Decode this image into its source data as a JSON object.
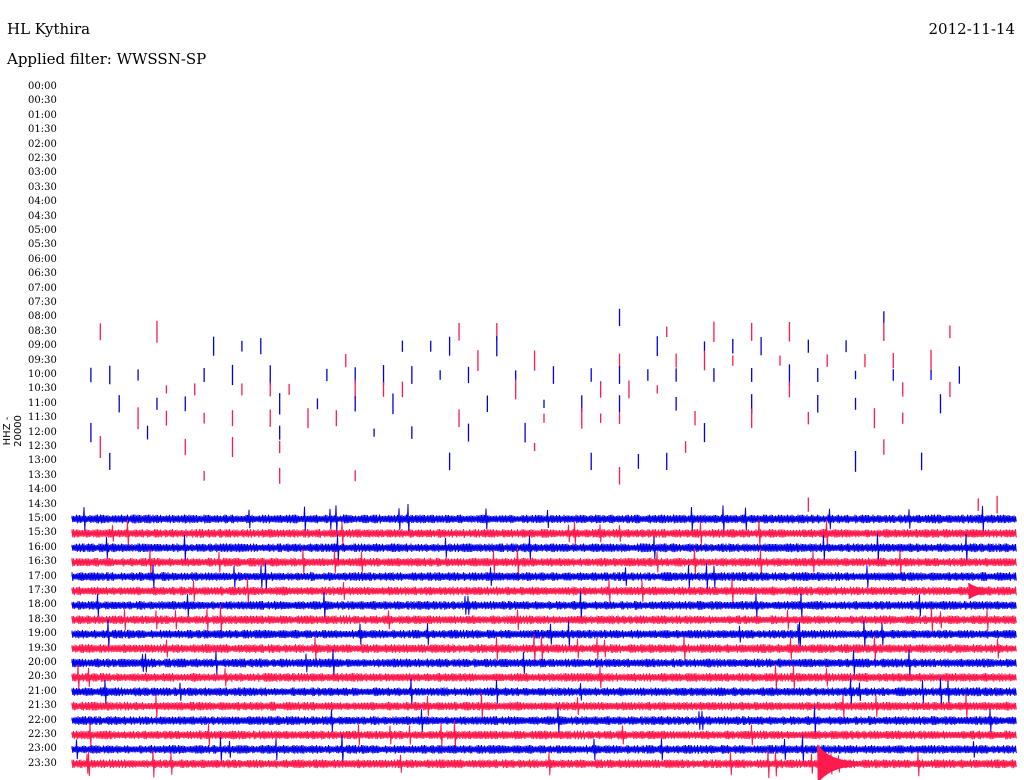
{
  "header": {
    "station": "HL Kythira",
    "date": "2012-11-14",
    "filter": "Applied filter: WWSSN-SP"
  },
  "chart_data": {
    "type": "line",
    "title": "HL Kythira",
    "ylabel": "HHZ - 20000",
    "row_labels": [
      "00:00",
      "00:30",
      "01:00",
      "01:30",
      "02:00",
      "02:30",
      "03:00",
      "03:30",
      "04:00",
      "04:30",
      "05:00",
      "05:30",
      "06:00",
      "06:30",
      "07:00",
      "07:30",
      "08:00",
      "08:30",
      "09:00",
      "09:30",
      "10:00",
      "10:30",
      "11:00",
      "11:30",
      "12:00",
      "12:30",
      "13:00",
      "13:30",
      "14:00",
      "14:30",
      "15:00",
      "15:30",
      "16:00",
      "16:30",
      "17:00",
      "17:30",
      "18:00",
      "18:30",
      "19:00",
      "19:30",
      "20:00",
      "20:30",
      "21:00",
      "21:30",
      "22:00",
      "22:30",
      "23:00",
      "23:30"
    ],
    "colors": {
      "even": "#0000e6",
      "odd": "#ff1a4d"
    },
    "continuous_from_row": 30,
    "event_markers": [
      {
        "time": "08:00",
        "x_frac": [
          0.58,
          0.86
        ]
      },
      {
        "time": "08:30",
        "x_frac": [
          0.03,
          0.09,
          0.41,
          0.45,
          0.63,
          0.68,
          0.72,
          0.76,
          0.86,
          0.93
        ]
      },
      {
        "time": "09:00",
        "x_frac": [
          0.15,
          0.18,
          0.2,
          0.35,
          0.38,
          0.4,
          0.45,
          0.62,
          0.67,
          0.7,
          0.73,
          0.78,
          0.82
        ]
      },
      {
        "time": "09:30",
        "x_frac": [
          0.29,
          0.43,
          0.49,
          0.58,
          0.64,
          0.67,
          0.7,
          0.75,
          0.8,
          0.84,
          0.87,
          0.91
        ]
      },
      {
        "time": "10:00",
        "x_frac": [
          0.02,
          0.04,
          0.07,
          0.14,
          0.17,
          0.21,
          0.27,
          0.3,
          0.33,
          0.36,
          0.39,
          0.42,
          0.47,
          0.51,
          0.55,
          0.58,
          0.61,
          0.64,
          0.68,
          0.72,
          0.76,
          0.79,
          0.83,
          0.87,
          0.91,
          0.94
        ]
      },
      {
        "time": "10:30",
        "x_frac": [
          0.1,
          0.13,
          0.18,
          0.21,
          0.23,
          0.3,
          0.33,
          0.35,
          0.47,
          0.56,
          0.59,
          0.62,
          0.76,
          0.88,
          0.93
        ]
      },
      {
        "time": "11:00",
        "x_frac": [
          0.05,
          0.09,
          0.12,
          0.22,
          0.26,
          0.3,
          0.34,
          0.44,
          0.5,
          0.54,
          0.58,
          0.64,
          0.72,
          0.79,
          0.83,
          0.92
        ]
      },
      {
        "time": "11:30",
        "x_frac": [
          0.07,
          0.1,
          0.14,
          0.17,
          0.21,
          0.25,
          0.28,
          0.41,
          0.5,
          0.54,
          0.56,
          0.58,
          0.66,
          0.72,
          0.78,
          0.85,
          0.88
        ]
      },
      {
        "time": "12:00",
        "x_frac": [
          0.02,
          0.08,
          0.22,
          0.32,
          0.36,
          0.42,
          0.48,
          0.67
        ]
      },
      {
        "time": "12:30",
        "x_frac": [
          0.03,
          0.12,
          0.17,
          0.22,
          0.49,
          0.65,
          0.86
        ]
      },
      {
        "time": "13:00",
        "x_frac": [
          0.04,
          0.4,
          0.55,
          0.6,
          0.63,
          0.83,
          0.9
        ]
      },
      {
        "time": "13:30",
        "x_frac": [
          0.14,
          0.22,
          0.3,
          0.58
        ]
      },
      {
        "time": "14:30",
        "x_frac": [
          0.78,
          0.96,
          0.98
        ]
      }
    ],
    "special_events": [
      {
        "time": "17:30",
        "x_frac": 0.95,
        "note": "burst"
      },
      {
        "time": "23:30",
        "x_frac": 0.79,
        "note": "large event"
      }
    ]
  }
}
